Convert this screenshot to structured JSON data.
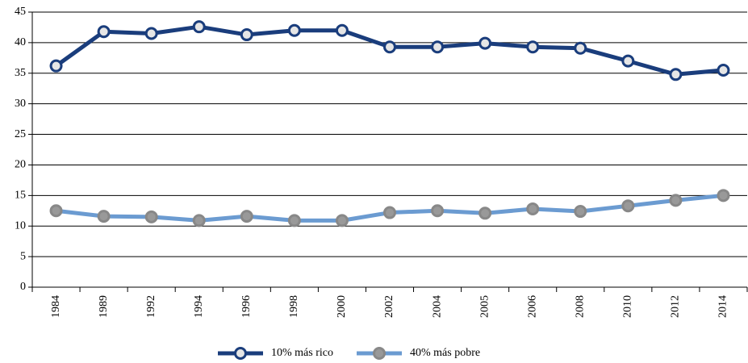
{
  "chart_data": {
    "type": "line",
    "categories": [
      "1984",
      "1989",
      "1992",
      "1994",
      "1996",
      "1998",
      "2000",
      "2002",
      "2004",
      "2005",
      "2006",
      "2008",
      "2010",
      "2012",
      "2014"
    ],
    "series": [
      {
        "name": "10% más rico",
        "color": "#1a3d7c",
        "marker_fill": "#e6e6e6",
        "values": [
          36.2,
          41.8,
          41.5,
          42.6,
          41.3,
          42.0,
          42.0,
          39.3,
          39.3,
          39.9,
          39.3,
          39.1,
          37.0,
          34.8,
          35.5
        ]
      },
      {
        "name": "40% más pobre",
        "color": "#6b9bd1",
        "marker_fill": "#999999",
        "values": [
          12.5,
          11.6,
          11.5,
          10.9,
          11.6,
          10.9,
          10.9,
          12.2,
          12.5,
          12.1,
          12.8,
          12.4,
          13.3,
          14.2,
          15.0
        ]
      }
    ],
    "ylim": [
      0,
      45
    ],
    "yticks": [
      0,
      5,
      10,
      15,
      20,
      25,
      30,
      35,
      40,
      45
    ],
    "grid": true
  }
}
